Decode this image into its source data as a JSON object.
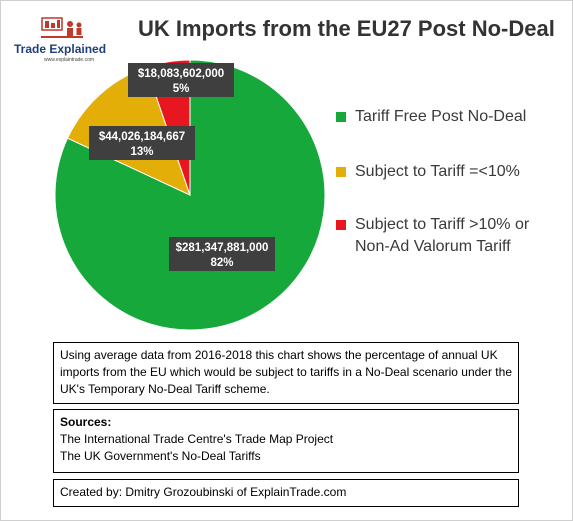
{
  "branding": {
    "name": "Trade Explained",
    "url": "www.explaintrade.com"
  },
  "chart_data": {
    "type": "pie",
    "title": "UK Imports from the EU27 Post No-Deal",
    "slices": [
      {
        "label": "Tariff Free Post No-Deal",
        "value": 281347881000,
        "value_label": "$281,347,881,000",
        "percent_label": "82%",
        "color": "#17a83c"
      },
      {
        "label": "Subject to Tariff =<10%",
        "value": 44026184667,
        "value_label": "$44,026,184,667",
        "percent_label": "13%",
        "color": "#e3ae08"
      },
      {
        "label": "Subject to Tariff >10% or Non-Ad Valorum Tariff",
        "value": 18083602000,
        "value_label": "$18,083,602,000",
        "percent_label": "5%",
        "color": "#e8171f"
      }
    ],
    "legend_position": "right"
  },
  "legend": {
    "items": [
      {
        "lines": [
          "Tariff Free Post No-Deal"
        ],
        "color": "#17a83c"
      },
      {
        "lines": [
          "Subject to Tariff =<10%"
        ],
        "color": "#e3ae08"
      },
      {
        "lines": [
          "Subject to Tariff >10% or",
          "Non-Ad Valorum Tariff"
        ],
        "color": "#e8171f"
      }
    ]
  },
  "notes": {
    "description": "Using average data from 2016-2018 this chart shows the percentage of annual UK imports from the EU which would be subject to tariffs in a No-Deal scenario under the UK's Temporary No-Deal Tariff scheme.",
    "sources_heading": "Sources:",
    "sources": [
      "The International Trade Centre's Trade Map Project",
      "The UK Government's No-Deal Tariffs"
    ],
    "credit": "Created by: Dmitry Grozoubinski of ExplainTrade.com"
  }
}
